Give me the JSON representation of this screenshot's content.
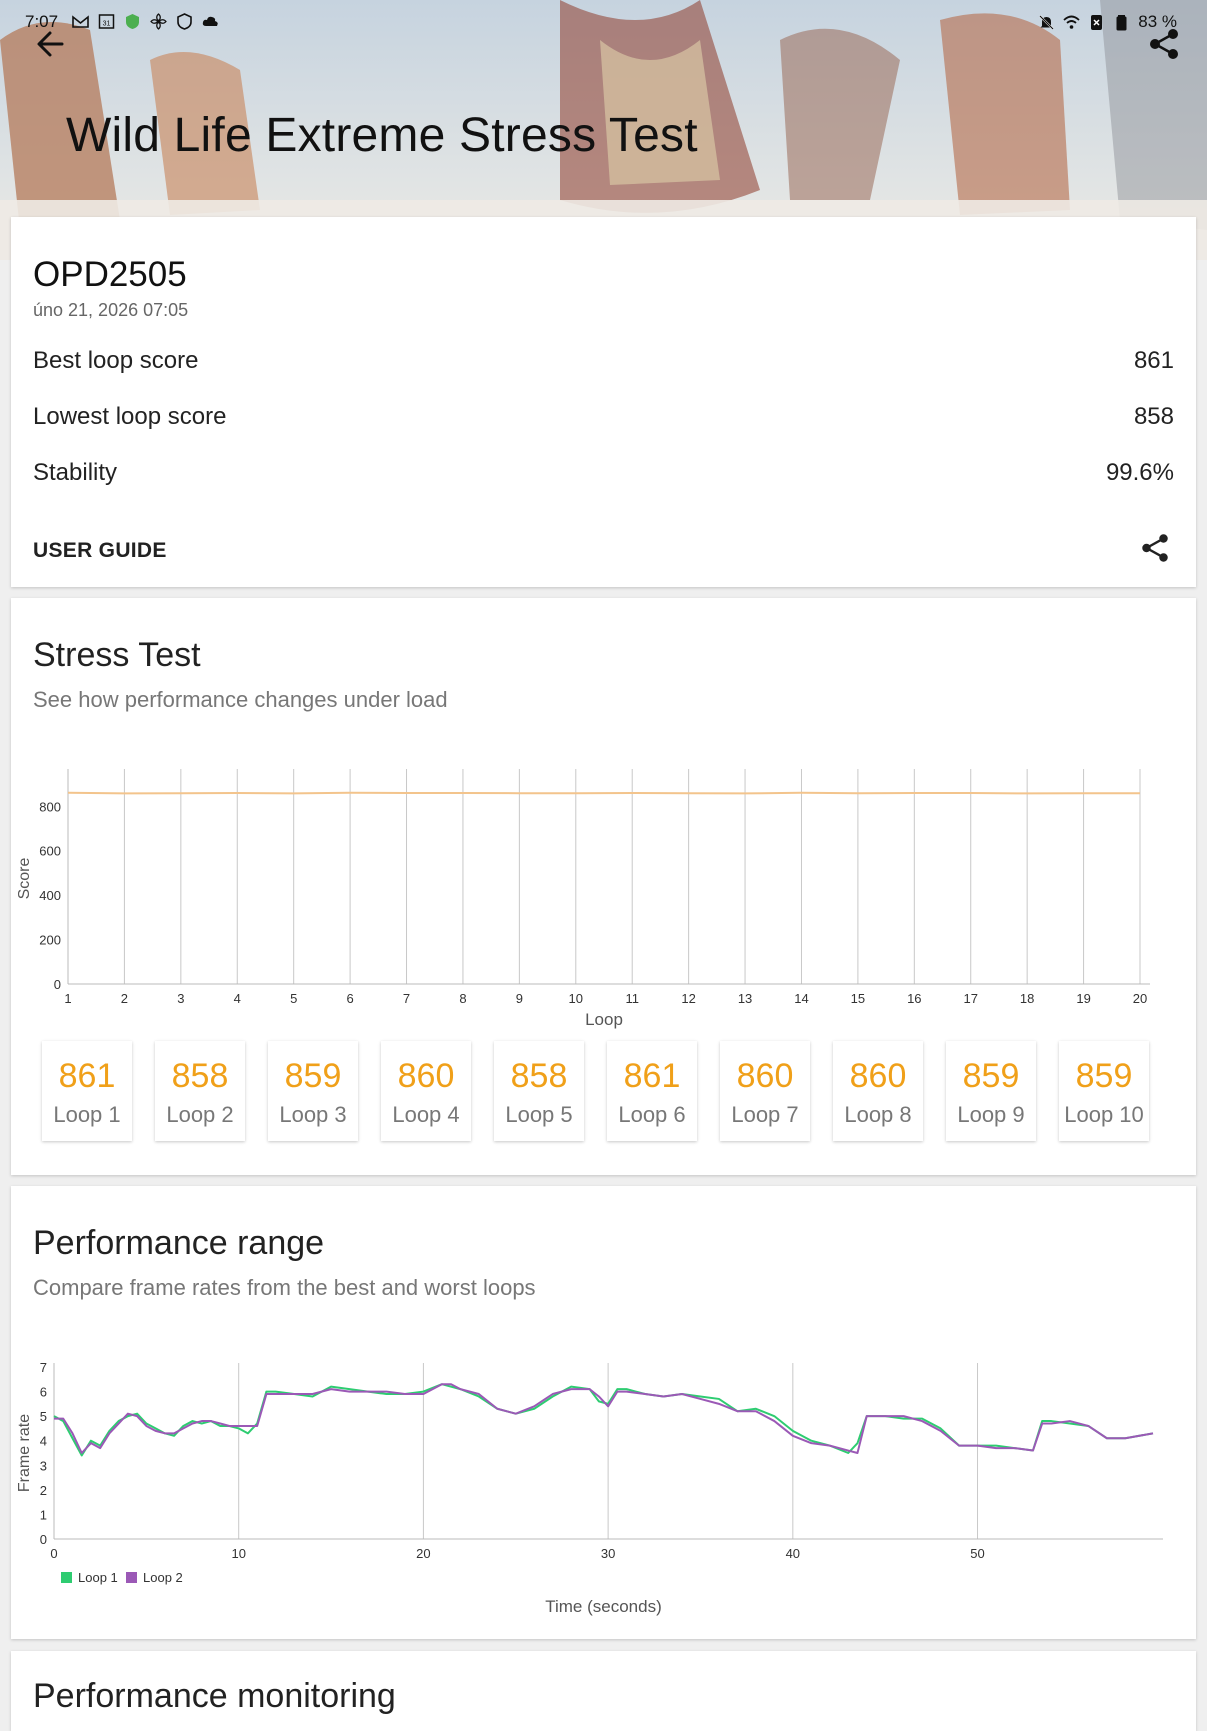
{
  "status_bar": {
    "time": "7:07",
    "battery": "83 %"
  },
  "header": {
    "title": "Wild Life Extreme Stress Test"
  },
  "summary": {
    "device": "OPD2505",
    "date": "úno 21, 2026 07:05",
    "rows": [
      {
        "label": "Best loop score",
        "value": "861"
      },
      {
        "label": "Lowest loop score",
        "value": "858"
      },
      {
        "label": "Stability",
        "value": "99.6%"
      }
    ],
    "user_guide": "USER GUIDE"
  },
  "stress_test": {
    "title": "Stress Test",
    "subtitle": "See how performance changes under load",
    "loops": [
      {
        "value": "861",
        "label": "Loop 1"
      },
      {
        "value": "858",
        "label": "Loop 2"
      },
      {
        "value": "859",
        "label": "Loop 3"
      },
      {
        "value": "860",
        "label": "Loop 4"
      },
      {
        "value": "858",
        "label": "Loop 5"
      },
      {
        "value": "861",
        "label": "Loop 6"
      },
      {
        "value": "860",
        "label": "Loop 7"
      },
      {
        "value": "860",
        "label": "Loop 8"
      },
      {
        "value": "859",
        "label": "Loop 9"
      },
      {
        "value": "859",
        "label": "Loop 10"
      }
    ]
  },
  "performance_range": {
    "title": "Performance range",
    "subtitle": "Compare frame rates from the best and worst loops"
  },
  "performance_monitoring": {
    "title": "Performance monitoring"
  },
  "colors": {
    "accent": "#f0a019",
    "loop1": "#2ecc71",
    "loop2": "#9b59b6",
    "score_line": "#f3c48c"
  },
  "icons": [
    "back-arrow-icon",
    "share-icon",
    "gmail-icon",
    "calendar-icon",
    "shield-icon",
    "cloud-icon",
    "wifi-icon",
    "battery-icon",
    "bell-off-icon"
  ],
  "chart_data": [
    {
      "type": "line",
      "xlabel": "Loop",
      "ylabel": "Score",
      "ylim": [
        0,
        950
      ],
      "yticks": [
        0,
        200,
        400,
        600,
        800
      ],
      "x": [
        1,
        2,
        3,
        4,
        5,
        6,
        7,
        8,
        9,
        10,
        11,
        12,
        13,
        14,
        15,
        16,
        17,
        18,
        19,
        20
      ],
      "series": [
        {
          "values": [
            861,
            858,
            859,
            860,
            858,
            861,
            860,
            860,
            859,
            859,
            860,
            859,
            858,
            861,
            859,
            860,
            860,
            858,
            859,
            859
          ]
        }
      ],
      "grid": "vertical"
    },
    {
      "type": "line",
      "xlabel": "Time (seconds)",
      "ylabel": "Frame rate",
      "ylim": [
        0,
        7
      ],
      "yticks": [
        0,
        1,
        2,
        3,
        4,
        5,
        6,
        7
      ],
      "xlim": [
        0,
        59.5
      ],
      "xticks": [
        0,
        10,
        20,
        30,
        40,
        50
      ],
      "legend": "bottom-left",
      "series": [
        {
          "name": "Loop 1",
          "x": [
            0,
            0.5,
            1,
            1.5,
            2,
            2.5,
            3,
            3.5,
            4,
            4.5,
            5,
            5.5,
            6,
            6.5,
            7,
            7.5,
            8,
            8.5,
            9,
            9.5,
            10,
            10.5,
            11,
            11.5,
            12,
            13,
            14,
            15,
            16,
            17,
            18,
            19,
            20,
            21,
            21.5,
            22,
            23,
            24,
            25,
            26,
            27,
            28,
            29,
            29.5,
            30,
            30.5,
            31,
            32,
            33,
            34,
            35,
            36,
            37,
            38,
            39,
            40,
            41,
            42,
            43,
            43.5,
            44,
            45,
            46,
            47,
            48,
            49,
            50,
            51,
            52,
            53,
            53.5,
            54,
            55,
            56,
            57,
            58,
            59.5
          ],
          "values": [
            5.0,
            4.8,
            4.1,
            3.4,
            4.0,
            3.8,
            4.4,
            4.8,
            5.0,
            5.1,
            4.7,
            4.5,
            4.3,
            4.2,
            4.6,
            4.8,
            4.7,
            4.8,
            4.6,
            4.6,
            4.5,
            4.3,
            4.7,
            6.0,
            6.0,
            5.9,
            5.8,
            6.2,
            6.1,
            6.0,
            5.9,
            5.9,
            6.0,
            6.3,
            6.2,
            6.1,
            5.8,
            5.3,
            5.1,
            5.3,
            5.8,
            6.2,
            6.1,
            5.6,
            5.5,
            6.1,
            6.1,
            5.9,
            5.8,
            5.9,
            5.8,
            5.7,
            5.2,
            5.3,
            5.0,
            4.4,
            4.0,
            3.8,
            3.5,
            3.9,
            5.0,
            5.0,
            4.9,
            4.9,
            4.5,
            3.8,
            3.8,
            3.8,
            3.7,
            3.6,
            4.8,
            4.8,
            4.7,
            4.6,
            4.1,
            4.1,
            4.3
          ]
        },
        {
          "name": "Loop 2",
          "x": [
            0,
            0.5,
            1,
            1.5,
            2,
            2.5,
            3,
            3.5,
            4,
            4.5,
            5,
            5.5,
            6,
            6.5,
            7,
            7.5,
            8,
            8.5,
            9,
            9.5,
            10,
            10.5,
            11,
            11.5,
            12,
            13,
            14,
            15,
            16,
            17,
            18,
            19,
            20,
            21,
            21.5,
            22,
            23,
            24,
            25,
            26,
            27,
            28,
            29,
            29.5,
            30,
            30.5,
            31,
            32,
            33,
            34,
            35,
            36,
            37,
            38,
            39,
            40,
            41,
            42,
            43,
            43.5,
            44,
            45,
            46,
            47,
            48,
            49,
            50,
            51,
            52,
            53,
            53.5,
            54,
            55,
            56,
            57,
            58,
            59.5
          ],
          "values": [
            4.9,
            4.9,
            4.3,
            3.5,
            3.9,
            3.7,
            4.3,
            4.7,
            5.1,
            5.0,
            4.6,
            4.4,
            4.3,
            4.3,
            4.5,
            4.7,
            4.8,
            4.8,
            4.7,
            4.6,
            4.6,
            4.6,
            4.6,
            5.9,
            5.9,
            5.9,
            5.9,
            6.1,
            6.0,
            6.0,
            6.0,
            5.9,
            5.9,
            6.3,
            6.3,
            6.1,
            5.9,
            5.3,
            5.1,
            5.4,
            5.9,
            6.1,
            6.1,
            5.8,
            5.4,
            6.0,
            6.0,
            5.9,
            5.8,
            5.9,
            5.7,
            5.5,
            5.2,
            5.2,
            4.8,
            4.2,
            3.9,
            3.8,
            3.6,
            3.5,
            5.0,
            5.0,
            5.0,
            4.8,
            4.4,
            3.8,
            3.8,
            3.7,
            3.7,
            3.6,
            4.7,
            4.7,
            4.8,
            4.6,
            4.1,
            4.1,
            4.3
          ]
        }
      ],
      "grid": "vertical"
    }
  ]
}
